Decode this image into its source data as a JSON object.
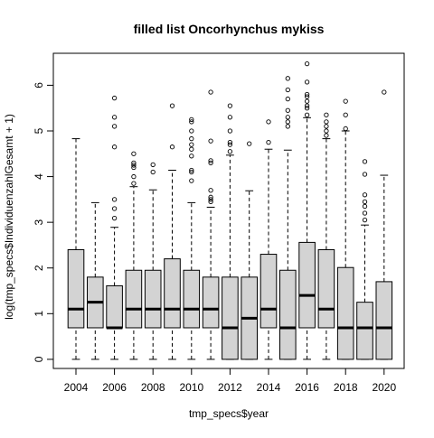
{
  "chart_data": {
    "type": "boxplot",
    "title": "filled list Oncorhynchus mykiss",
    "xlabel": "tmp_specs$year",
    "ylabel": "log(tmp_specs$IndividuenzahlGesamt + 1)",
    "ylim": [
      -0.2,
      6.7
    ],
    "y_ticks": [
      0,
      1,
      2,
      3,
      4,
      5,
      6
    ],
    "x_tick_labels": [
      "2004",
      "2006",
      "2008",
      "2010",
      "2012",
      "2014",
      "2016",
      "2018",
      "2020"
    ],
    "grid": false,
    "box_fill": "#d3d3d3",
    "categories": [
      "2004",
      "2005",
      "2006",
      "2007",
      "2008",
      "2009",
      "2010",
      "2011",
      "2012",
      "2013",
      "2014",
      "2015",
      "2016",
      "2017",
      "2018",
      "2019",
      "2020"
    ],
    "boxes": [
      {
        "year": "2004",
        "min": 0,
        "q1": 0.69,
        "median": 1.1,
        "q3": 2.4,
        "max": 4.83,
        "outliers": []
      },
      {
        "year": "2005",
        "min": 0,
        "q1": 0.69,
        "median": 1.25,
        "q3": 1.8,
        "max": 3.43,
        "outliers": []
      },
      {
        "year": "2006",
        "min": 0,
        "q1": 0.69,
        "median": 0.69,
        "q3": 1.61,
        "max": 2.89,
        "outliers": [
          3.09,
          3.3,
          3.5,
          4.65,
          5.1,
          5.3,
          5.72
        ]
      },
      {
        "year": "2007",
        "min": 0,
        "q1": 0.69,
        "median": 1.1,
        "q3": 1.95,
        "max": 3.78,
        "outliers": [
          3.85,
          4.0,
          4.2,
          4.25,
          4.3,
          4.5
        ]
      },
      {
        "year": "2008",
        "min": 0,
        "q1": 0.69,
        "median": 1.1,
        "q3": 1.95,
        "max": 3.71,
        "outliers": [
          4.1,
          4.26
        ]
      },
      {
        "year": "2009",
        "min": 0,
        "q1": 0.69,
        "median": 1.1,
        "q3": 2.2,
        "max": 4.14,
        "outliers": [
          4.65,
          5.55
        ]
      },
      {
        "year": "2010",
        "min": 0,
        "q1": 0.69,
        "median": 1.1,
        "q3": 1.95,
        "max": 3.43,
        "outliers": [
          3.91,
          4.1,
          4.14,
          4.45,
          4.6,
          4.7,
          4.83,
          5.0,
          5.2,
          5.25
        ]
      },
      {
        "year": "2011",
        "min": 0,
        "q1": 0.69,
        "median": 1.1,
        "q3": 1.8,
        "max": 3.33,
        "outliers": [
          3.45,
          3.5,
          3.55,
          3.7,
          4.3,
          4.35,
          4.78,
          5.85
        ]
      },
      {
        "year": "2012",
        "min": 0,
        "q1": 0,
        "median": 0.69,
        "q3": 1.8,
        "max": 4.47,
        "outliers": [
          4.55,
          4.7,
          4.75,
          5.0,
          5.3,
          5.55
        ]
      },
      {
        "year": "2013",
        "min": 0,
        "q1": 0,
        "median": 0.9,
        "q3": 1.8,
        "max": 3.69,
        "outliers": [
          4.72
        ]
      },
      {
        "year": "2014",
        "min": 0,
        "q1": 0.69,
        "median": 1.1,
        "q3": 2.3,
        "max": 4.6,
        "outliers": [
          4.75,
          5.2
        ]
      },
      {
        "year": "2015",
        "min": 0,
        "q1": 0,
        "median": 0.69,
        "q3": 1.95,
        "max": 4.58,
        "outliers": [
          5.1,
          5.2,
          5.3,
          5.45,
          5.7,
          5.9,
          6.15
        ]
      },
      {
        "year": "2016",
        "min": 0,
        "q1": 0.69,
        "median": 1.4,
        "q3": 2.56,
        "max": 5.29,
        "outliers": [
          5.35,
          5.5,
          5.55,
          5.65,
          5.75,
          5.8,
          6.07,
          6.47
        ]
      },
      {
        "year": "2017",
        "min": 0,
        "q1": 0.69,
        "median": 1.1,
        "q3": 2.4,
        "max": 4.83,
        "outliers": [
          4.9,
          5.0,
          5.1,
          5.2,
          5.35
        ]
      },
      {
        "year": "2018",
        "min": 0,
        "q1": 0,
        "median": 0.69,
        "q3": 2.01,
        "max": 5.0,
        "outliers": [
          5.05,
          5.35,
          5.65
        ]
      },
      {
        "year": "2019",
        "min": 0,
        "q1": 0,
        "median": 0.69,
        "q3": 1.25,
        "max": 2.94,
        "outliers": [
          3.05,
          3.2,
          3.35,
          3.45,
          3.6,
          4.05,
          4.33
        ]
      },
      {
        "year": "2020",
        "min": 0,
        "q1": 0,
        "median": 0.69,
        "q3": 1.7,
        "max": 4.03,
        "outliers": [
          5.85
        ]
      }
    ]
  }
}
